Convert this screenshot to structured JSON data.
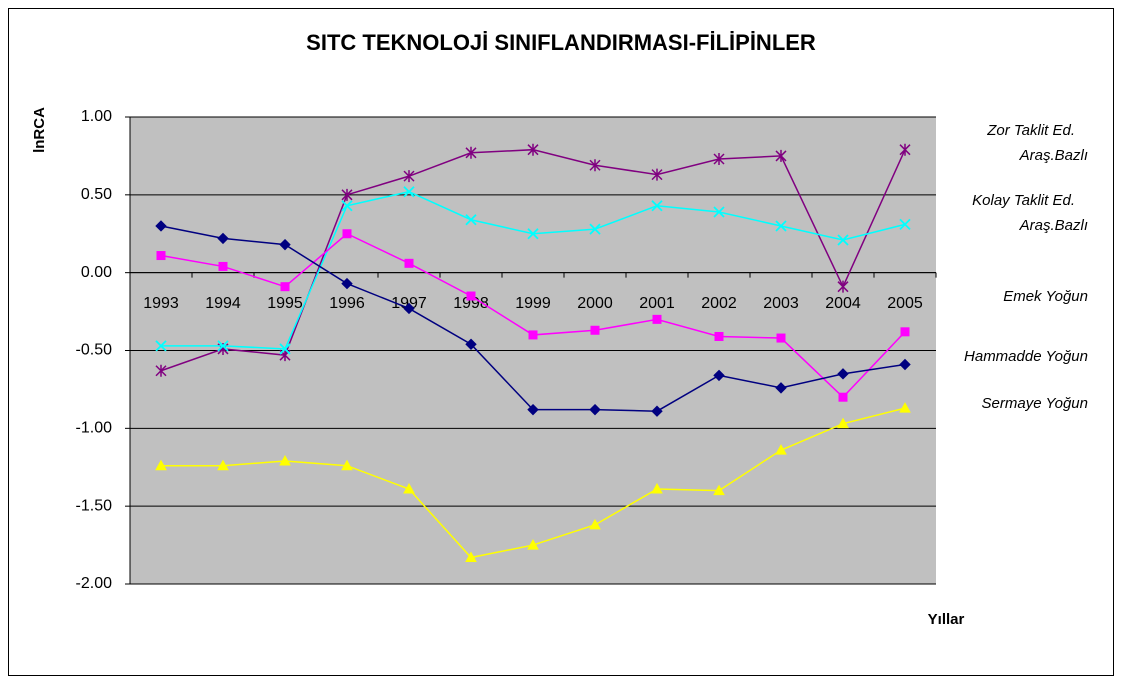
{
  "chart_data": {
    "type": "line",
    "title": "SITC TEKNOLOJİ SINIFLANDIRMASI-FİLİPİNLER",
    "y_label": "lnRCA",
    "x_label": "Yıllar",
    "categories": [
      "1993",
      "1994",
      "1995",
      "1996",
      "1997",
      "1998",
      "1999",
      "2000",
      "2001",
      "2002",
      "2003",
      "2004",
      "2005"
    ],
    "ylim": [
      -2,
      1
    ],
    "yticks": [
      {
        "value": -2,
        "label": "-2.00"
      },
      {
        "value": -1.5,
        "label": "-1.50"
      },
      {
        "value": -1,
        "label": "-1.00"
      },
      {
        "value": -0.5,
        "label": "-0.50"
      },
      {
        "value": 0,
        "label": "0.00"
      },
      {
        "value": 0.5,
        "label": "0.50"
      },
      {
        "value": 1,
        "label": "1.00"
      }
    ],
    "grid": true,
    "legend": "right",
    "series": [
      {
        "name": "Zor Taklit Ed. Araş.Bazlı",
        "color": "#800080",
        "marker": "asterisk",
        "values": [
          -0.63,
          -0.49,
          -0.53,
          0.5,
          0.62,
          0.77,
          0.79,
          0.69,
          0.63,
          0.73,
          0.75,
          -0.09,
          0.79
        ]
      },
      {
        "name": "Kolay Taklit Ed. Araş.Bazlı",
        "color": "#00FFFF",
        "marker": "x",
        "values": [
          -0.47,
          -0.47,
          -0.49,
          0.43,
          0.52,
          0.34,
          0.25,
          0.28,
          0.43,
          0.39,
          0.3,
          0.21,
          0.31
        ]
      },
      {
        "name": "Emek Yoğun",
        "color": "#FF00FF",
        "marker": "square",
        "values": [
          0.11,
          0.04,
          -0.09,
          0.25,
          0.06,
          -0.15,
          -0.4,
          -0.37,
          -0.3,
          -0.41,
          -0.42,
          -0.8,
          -0.38
        ]
      },
      {
        "name": "Hammadde Yoğun",
        "color": "#000080",
        "marker": "diamond",
        "values": [
          0.3,
          0.22,
          0.18,
          -0.07,
          -0.23,
          -0.46,
          -0.88,
          -0.88,
          -0.89,
          -0.66,
          -0.74,
          -0.65,
          -0.59
        ]
      },
      {
        "name": "Sermaye Yoğun",
        "color": "#FFFF00",
        "marker": "triangle",
        "values": [
          -1.24,
          -1.24,
          -1.21,
          -1.24,
          -1.39,
          -1.83,
          -1.75,
          -1.62,
          -1.39,
          -1.4,
          -1.14,
          -0.97,
          -0.87
        ]
      }
    ]
  }
}
